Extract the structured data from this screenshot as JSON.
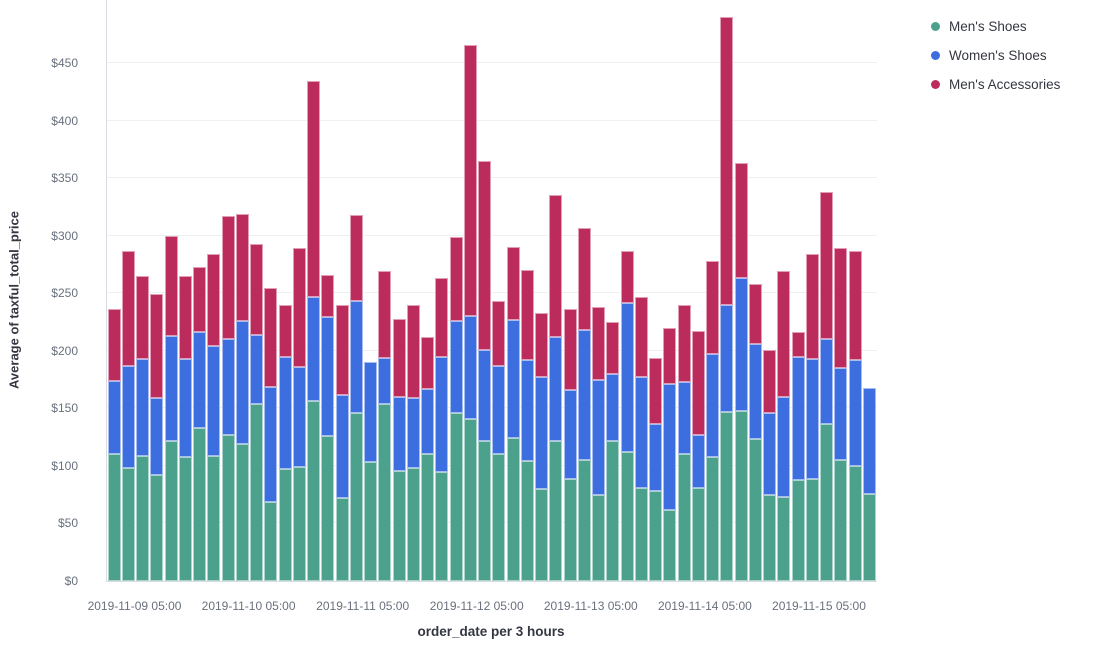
{
  "chart_data": {
    "type": "bar",
    "stacked": true,
    "xlabel": "order_date per 3 hours",
    "ylabel": "Average of taxful_total_price",
    "ylim": [
      0,
      505
    ],
    "grid": "horizontal",
    "legend_position": "top-right",
    "y_ticks": [
      {
        "value": 0,
        "label": "$0"
      },
      {
        "value": 50,
        "label": "$50"
      },
      {
        "value": 100,
        "label": "$100"
      },
      {
        "value": 150,
        "label": "$150"
      },
      {
        "value": 200,
        "label": "$200"
      },
      {
        "value": 250,
        "label": "$250"
      },
      {
        "value": 300,
        "label": "$300"
      },
      {
        "value": 350,
        "label": "$350"
      },
      {
        "value": 400,
        "label": "$400"
      },
      {
        "value": 450,
        "label": "$450"
      }
    ],
    "x_ticks": [
      {
        "label": "2019-11-09 05:00",
        "bar_index": 2
      },
      {
        "label": "2019-11-10 05:00",
        "bar_index": 10
      },
      {
        "label": "2019-11-11 05:00",
        "bar_index": 18
      },
      {
        "label": "2019-11-12 05:00",
        "bar_index": 26
      },
      {
        "label": "2019-11-13 05:00",
        "bar_index": 34
      },
      {
        "label": "2019-11-14 05:00",
        "bar_index": 42
      },
      {
        "label": "2019-11-15 05:00",
        "bar_index": 50
      }
    ],
    "series": [
      {
        "name": "Men's Shoes",
        "color": "#4BA18C",
        "values": [
          110,
          98,
          109,
          92,
          122,
          108,
          133,
          109,
          127,
          119,
          154,
          69,
          97,
          99,
          156,
          126,
          72,
          146,
          103,
          154,
          96,
          98,
          110,
          95,
          146,
          141,
          122,
          110,
          124,
          104,
          80,
          122,
          89,
          105,
          75,
          122,
          112,
          81,
          78,
          62,
          110,
          81,
          108,
          147,
          148,
          123,
          75,
          73,
          88,
          89,
          136,
          105,
          100,
          76
        ]
      },
      {
        "name": "Women's Shoes",
        "color": "#3D6EE0",
        "values": [
          64,
          89,
          84,
          67,
          91,
          85,
          83,
          95,
          83,
          107,
          60,
          100,
          98,
          87,
          91,
          103,
          90,
          97,
          87,
          40,
          64,
          61,
          57,
          100,
          80,
          89,
          79,
          77,
          103,
          88,
          97,
          90,
          77,
          113,
          100,
          58,
          130,
          96,
          58,
          109,
          63,
          46,
          89,
          93,
          115,
          83,
          71,
          87,
          107,
          104,
          74,
          80,
          92,
          92
        ]
      },
      {
        "name": "Men's Accessories",
        "color": "#BB2C5D",
        "values": [
          62,
          100,
          72,
          90,
          87,
          72,
          57,
          80,
          107,
          93,
          79,
          86,
          45,
          103,
          187,
          37,
          78,
          75,
          0,
          75,
          68,
          81,
          45,
          68,
          73,
          236,
          164,
          56,
          63,
          78,
          56,
          123,
          70,
          89,
          63,
          45,
          45,
          70,
          58,
          49,
          67,
          90,
          81,
          250,
          100,
          52,
          55,
          109,
          21,
          91,
          128,
          104,
          95,
          0
        ]
      }
    ]
  }
}
